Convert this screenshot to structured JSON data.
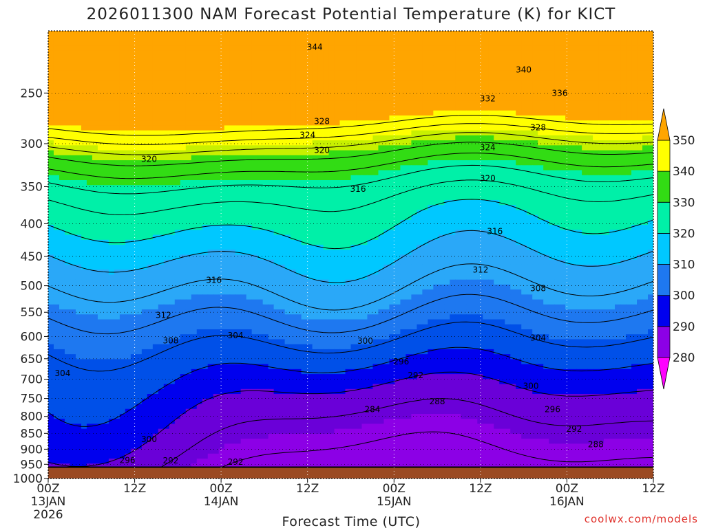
{
  "title": "2026011300 NAM Forecast Potential Temperature (K) for KICT",
  "xlabel": "Forecast Time (UTC)",
  "credit": "coolwx.com/models",
  "colors": {
    "terrain": "#9b4a22",
    "credit": "#e0302a",
    "bands": [
      "#ff00ff",
      "#8c00e6",
      "#6a00d8",
      "#0000ee",
      "#0050e8",
      "#1e78f0",
      "#2aa8f8",
      "#00c8ff",
      "#00f0a8",
      "#32dc14",
      "#c8f000",
      "#ffff00",
      "#ffa500"
    ]
  },
  "chart_data": {
    "type": "heatmap",
    "title": "2026011300 NAM Forecast Potential Temperature (K) for KICT",
    "xlabel": "Forecast Time (UTC)",
    "ylabel": "",
    "y_scale": "log-pressure (inverted)",
    "ylim": [
      1000,
      200
    ],
    "xlim_hours": [
      0,
      84
    ],
    "grid": "dotted",
    "y_ticks": [
      250,
      300,
      350,
      400,
      450,
      500,
      550,
      600,
      650,
      700,
      750,
      800,
      850,
      900,
      950,
      1000
    ],
    "x_ticks": [
      {
        "hour": 0,
        "lines": [
          "00Z",
          "13JAN",
          "2026"
        ]
      },
      {
        "hour": 12,
        "lines": [
          "12Z"
        ]
      },
      {
        "hour": 24,
        "lines": [
          "00Z",
          "14JAN"
        ]
      },
      {
        "hour": 36,
        "lines": [
          "12Z"
        ]
      },
      {
        "hour": 48,
        "lines": [
          "00Z",
          "15JAN"
        ]
      },
      {
        "hour": 60,
        "lines": [
          "12Z"
        ]
      },
      {
        "hour": 72,
        "lines": [
          "00Z",
          "16JAN"
        ]
      },
      {
        "hour": 84,
        "lines": [
          "12Z"
        ]
      }
    ],
    "colorbar": {
      "labels": [
        280,
        290,
        300,
        310,
        320,
        330,
        340,
        350
      ],
      "extend": "both",
      "units": "K"
    },
    "contour_labels": [
      {
        "value": 344,
        "hour": 37,
        "p": 212
      },
      {
        "value": 340,
        "hour": 66,
        "p": 230
      },
      {
        "value": 336,
        "hour": 71,
        "p": 250
      },
      {
        "value": 332,
        "hour": 61,
        "p": 255
      },
      {
        "value": 328,
        "hour": 38,
        "p": 277
      },
      {
        "value": 328,
        "hour": 68,
        "p": 283
      },
      {
        "value": 324,
        "hour": 36,
        "p": 291
      },
      {
        "value": 324,
        "hour": 61,
        "p": 304
      },
      {
        "value": 320,
        "hour": 38,
        "p": 307
      },
      {
        "value": 320,
        "hour": 14,
        "p": 317
      },
      {
        "value": 320,
        "hour": 61,
        "p": 340
      },
      {
        "value": 316,
        "hour": 43,
        "p": 353
      },
      {
        "value": 316,
        "hour": 62,
        "p": 411
      },
      {
        "value": 316,
        "hour": 23,
        "p": 490
      },
      {
        "value": 312,
        "hour": 60,
        "p": 472
      },
      {
        "value": 312,
        "hour": 16,
        "p": 556
      },
      {
        "value": 308,
        "hour": 68,
        "p": 505
      },
      {
        "value": 308,
        "hour": 17,
        "p": 609
      },
      {
        "value": 304,
        "hour": 26,
        "p": 598
      },
      {
        "value": 304,
        "hour": 68,
        "p": 603
      },
      {
        "value": 304,
        "hour": 2,
        "p": 685
      },
      {
        "value": 300,
        "hour": 44,
        "p": 610
      },
      {
        "value": 300,
        "hour": 67,
        "p": 717
      },
      {
        "value": 300,
        "hour": 14,
        "p": 869
      },
      {
        "value": 296,
        "hour": 49,
        "p": 657
      },
      {
        "value": 296,
        "hour": 70,
        "p": 780
      },
      {
        "value": 296,
        "hour": 11,
        "p": 937
      },
      {
        "value": 292,
        "hour": 51,
        "p": 690
      },
      {
        "value": 292,
        "hour": 73,
        "p": 837
      },
      {
        "value": 292,
        "hour": 17,
        "p": 938
      },
      {
        "value": 292,
        "hour": 26,
        "p": 942
      },
      {
        "value": 288,
        "hour": 54,
        "p": 758
      },
      {
        "value": 288,
        "hour": 76,
        "p": 885
      },
      {
        "value": 284,
        "hour": 45,
        "p": 780
      }
    ]
  }
}
